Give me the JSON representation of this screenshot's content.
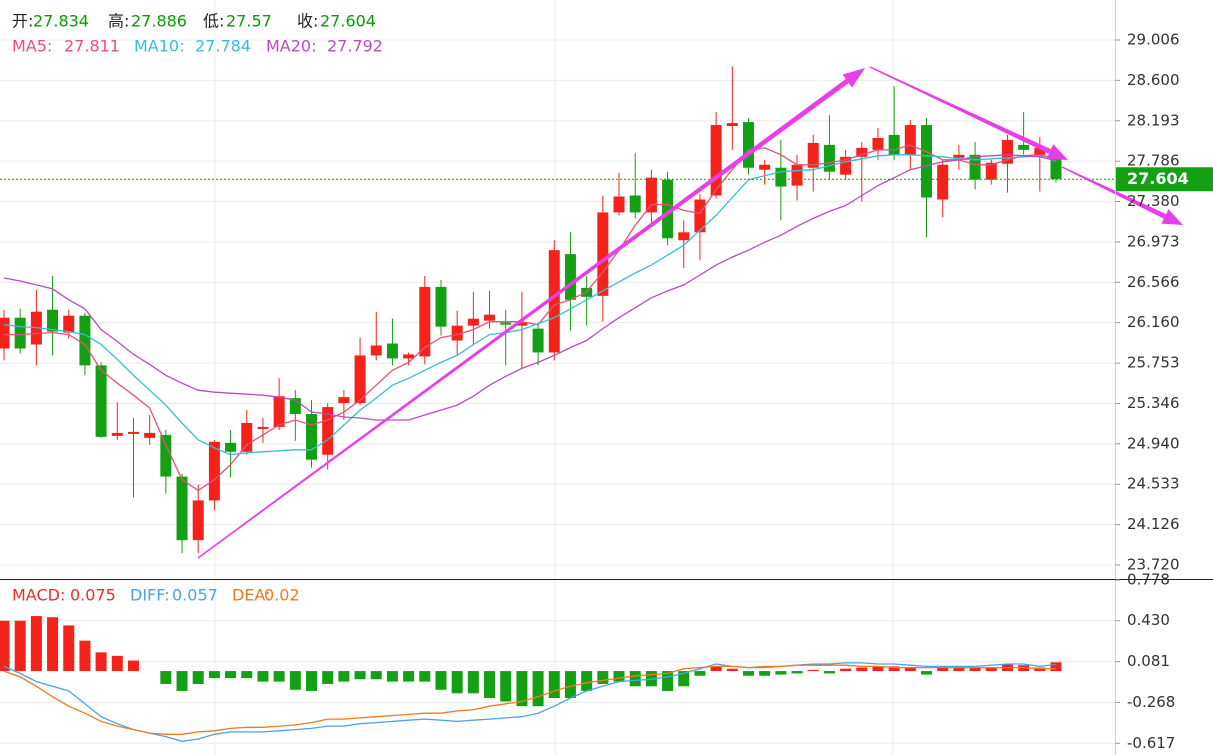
{
  "header": {
    "labels": [
      "开:",
      "高:",
      "低:",
      "收:"
    ],
    "label_color": "#222222",
    "value_color": "#0a9a0a"
  },
  "chart_data": [
    {
      "type": "candlestick",
      "up_color": "#f5221b",
      "down_color": "#14a014",
      "open": [
        25.9,
        26.21,
        25.94,
        26.29,
        26.06,
        26.23,
        25.73,
        25.02,
        25.04,
        25.0,
        25.03,
        24.61,
        23.97,
        24.37,
        24.95,
        24.86,
        25.09,
        25.11,
        25.4,
        25.24,
        24.83,
        25.35,
        25.35,
        25.83,
        25.95,
        25.8,
        25.82,
        26.52,
        25.98,
        26.13,
        26.18,
        26.16,
        26.13,
        26.1,
        25.86,
        26.85,
        26.51,
        26.43,
        27.27,
        27.44,
        27.27,
        27.6,
        26.99,
        27.07,
        27.44,
        28.14,
        28.18,
        27.7,
        27.72,
        27.54,
        27.72,
        27.95,
        27.65,
        27.83,
        27.9,
        28.05,
        27.85,
        28.15,
        27.4,
        27.82,
        27.85,
        27.6,
        27.76,
        27.95,
        27.85,
        27.834
      ],
      "high": [
        26.29,
        26.3,
        26.49,
        26.63,
        26.29,
        26.26,
        25.76,
        25.36,
        25.2,
        25.23,
        25.08,
        24.64,
        24.53,
        24.98,
        25.08,
        25.28,
        25.2,
        25.6,
        25.48,
        25.38,
        25.35,
        25.48,
        26.01,
        26.27,
        26.2,
        25.86,
        26.63,
        26.59,
        26.28,
        26.47,
        26.48,
        26.29,
        26.47,
        26.16,
        26.99,
        27.07,
        26.63,
        27.44,
        27.67,
        27.87,
        27.7,
        27.68,
        27.19,
        27.45,
        28.28,
        28.74,
        28.22,
        27.8,
        28.0,
        27.85,
        28.05,
        28.25,
        27.9,
        27.98,
        28.12,
        28.54,
        28.2,
        28.22,
        27.8,
        27.95,
        27.98,
        27.8,
        28.05,
        28.28,
        28.03,
        27.886
      ],
      "low": [
        25.78,
        25.85,
        25.73,
        25.83,
        26.0,
        25.63,
        25.0,
        24.98,
        24.4,
        24.93,
        24.44,
        23.84,
        23.84,
        24.27,
        24.6,
        24.83,
        24.95,
        25.08,
        24.97,
        24.7,
        24.68,
        25.18,
        25.33,
        25.78,
        25.73,
        25.73,
        25.74,
        26.03,
        25.83,
        25.93,
        26.1,
        25.73,
        25.7,
        25.73,
        25.78,
        26.08,
        26.13,
        26.17,
        27.24,
        27.21,
        27.14,
        26.94,
        26.71,
        26.79,
        27.41,
        27.9,
        27.65,
        27.55,
        27.19,
        27.39,
        27.48,
        27.6,
        27.6,
        27.38,
        27.8,
        27.8,
        27.7,
        27.02,
        27.22,
        27.7,
        27.5,
        27.55,
        27.47,
        27.85,
        27.48,
        27.57
      ],
      "close": [
        26.21,
        25.9,
        26.27,
        26.07,
        26.23,
        25.73,
        25.01,
        25.05,
        25.06,
        25.05,
        24.61,
        23.97,
        24.37,
        24.96,
        24.86,
        25.15,
        25.11,
        25.42,
        25.24,
        24.78,
        25.31,
        25.41,
        25.83,
        25.93,
        25.8,
        25.84,
        26.52,
        26.12,
        26.13,
        26.2,
        26.24,
        26.14,
        26.16,
        25.86,
        26.89,
        26.39,
        26.42,
        27.27,
        27.43,
        27.27,
        27.62,
        27.01,
        27.07,
        27.4,
        28.15,
        28.17,
        27.72,
        27.75,
        27.53,
        27.75,
        27.97,
        27.68,
        27.83,
        27.92,
        28.02,
        27.85,
        28.15,
        27.42,
        27.75,
        27.85,
        27.6,
        27.77,
        28.0,
        27.9,
        27.92,
        27.604
      ],
      "series": [
        {
          "name": "MA5:",
          "color": "#e8507a",
          "values": [
            26.04,
            26.04,
            26.05,
            26.06,
            26.04,
            25.94,
            25.68,
            25.55,
            25.43,
            25.3,
            24.93,
            24.58,
            24.47,
            24.58,
            24.73,
            24.93,
            25.03,
            25.13,
            25.18,
            25.13,
            25.18,
            25.26,
            25.38,
            25.53,
            25.68,
            25.76,
            25.91,
            26.01,
            26.04,
            26.09,
            26.17,
            26.17,
            26.17,
            26.14,
            26.34,
            26.39,
            26.47,
            26.67,
            26.89,
            27.14,
            27.35,
            27.35,
            27.29,
            27.26,
            27.5,
            27.7,
            27.9,
            27.92,
            27.85,
            27.75,
            27.75,
            27.77,
            27.8,
            27.85,
            27.9,
            27.9,
            27.95,
            27.88,
            27.8,
            27.8,
            27.75,
            27.75,
            27.8,
            27.84,
            27.85,
            27.811
          ]
        },
        {
          "name": "MA10:",
          "color": "#36bfd4",
          "values": [
            26.14,
            26.12,
            26.11,
            26.09,
            26.07,
            26.04,
            25.94,
            25.79,
            25.63,
            25.48,
            25.33,
            25.15,
            24.98,
            24.9,
            24.83,
            24.85,
            24.86,
            24.87,
            24.88,
            24.88,
            24.98,
            25.13,
            25.28,
            25.4,
            25.53,
            25.6,
            25.68,
            25.76,
            25.83,
            25.94,
            26.04,
            26.06,
            26.09,
            26.15,
            26.21,
            26.3,
            26.39,
            26.48,
            26.57,
            26.66,
            26.74,
            26.84,
            26.94,
            27.09,
            27.24,
            27.42,
            27.6,
            27.64,
            27.68,
            27.69,
            27.7,
            27.74,
            27.78,
            27.81,
            27.84,
            27.85,
            27.85,
            27.84,
            27.83,
            27.81,
            27.8,
            27.81,
            27.82,
            27.83,
            27.84,
            27.784
          ]
        },
        {
          "name": "MA20:",
          "color": "#b44fc2",
          "values": [
            26.61,
            26.58,
            26.54,
            26.5,
            26.39,
            26.3,
            26.09,
            25.97,
            25.84,
            25.74,
            25.63,
            25.55,
            25.48,
            25.46,
            25.45,
            25.44,
            25.43,
            25.41,
            25.38,
            25.26,
            25.24,
            25.21,
            25.2,
            25.18,
            25.18,
            25.18,
            25.23,
            25.28,
            25.33,
            25.42,
            25.53,
            25.62,
            25.7,
            25.76,
            25.83,
            25.91,
            25.98,
            26.1,
            26.21,
            26.31,
            26.41,
            26.48,
            26.54,
            26.64,
            26.74,
            26.82,
            26.89,
            26.97,
            27.04,
            27.13,
            27.21,
            27.28,
            27.34,
            27.44,
            27.54,
            27.62,
            27.7,
            27.74,
            27.78,
            27.8,
            27.83,
            27.84,
            27.85,
            27.84,
            27.83,
            27.792
          ]
        }
      ],
      "ylim": [
        23.589,
        29.409
      ],
      "yticks": [
        29.006,
        {
          "value": 28.6,
          "label": "28.600"
        },
        28.193,
        27.786,
        {
          "value": 27.38,
          "label": "27.380"
        },
        26.973,
        26.566,
        {
          "value": 26.16,
          "label": "26.160"
        },
        25.753,
        25.346,
        {
          "value": 24.94,
          "label": "24.940"
        },
        24.533,
        24.126,
        {
          "value": 23.72,
          "label": "23.720"
        }
      ],
      "grid": true,
      "last_price_color": "#13a013"
    },
    {
      "type": "macd",
      "up_color": "#f5221b",
      "down_color": "#14a014",
      "series": [
        {
          "name": "MACD:",
          "color": "#e8302a",
          "kind": "histogram",
          "values": [
            0.43,
            0.43,
            0.47,
            0.46,
            0.39,
            0.26,
            0.16,
            0.13,
            0.09,
            0,
            -0.11,
            -0.17,
            -0.11,
            -0.06,
            -0.06,
            -0.06,
            -0.09,
            -0.09,
            -0.16,
            -0.17,
            -0.11,
            -0.09,
            -0.07,
            -0.07,
            -0.09,
            -0.09,
            -0.09,
            -0.16,
            -0.19,
            -0.19,
            -0.23,
            -0.26,
            -0.3,
            -0.3,
            -0.23,
            -0.23,
            -0.17,
            -0.11,
            -0.09,
            -0.13,
            -0.13,
            -0.17,
            -0.13,
            -0.04,
            0.04,
            0.02,
            -0.04,
            -0.04,
            -0.03,
            -0.02,
            0.01,
            -0.02,
            0.02,
            0.03,
            0.04,
            0.04,
            0.03,
            -0.03,
            0.03,
            0.03,
            0.03,
            0.03,
            0.06,
            0.05,
            0.03,
            0.075
          ]
        },
        {
          "name": "DIFF:",
          "color": "#4aa3e8",
          "kind": "line",
          "values": [
            0.04,
            -0.02,
            -0.09,
            -0.13,
            -0.17,
            -0.28,
            -0.39,
            -0.45,
            -0.5,
            -0.53,
            -0.56,
            -0.6,
            -0.58,
            -0.54,
            -0.52,
            -0.52,
            -0.52,
            -0.51,
            -0.5,
            -0.49,
            -0.47,
            -0.47,
            -0.45,
            -0.44,
            -0.43,
            -0.42,
            -0.41,
            -0.42,
            -0.43,
            -0.42,
            -0.41,
            -0.4,
            -0.39,
            -0.36,
            -0.3,
            -0.23,
            -0.17,
            -0.13,
            -0.09,
            -0.08,
            -0.07,
            -0.05,
            -0.02,
            0.02,
            0.06,
            0.04,
            0.03,
            0.03,
            0.04,
            0.05,
            0.06,
            0.06,
            0.07,
            0.07,
            0.06,
            0.06,
            0.05,
            0.04,
            0.04,
            0.04,
            0.04,
            0.05,
            0.06,
            0.06,
            0.04,
            0.057
          ]
        },
        {
          "name": "DEA:",
          "color": "#f07a1f",
          "kind": "line",
          "values": [
            0.0,
            -0.05,
            -0.13,
            -0.22,
            -0.3,
            -0.36,
            -0.43,
            -0.47,
            -0.5,
            -0.53,
            -0.54,
            -0.54,
            -0.52,
            -0.51,
            -0.49,
            -0.48,
            -0.48,
            -0.47,
            -0.46,
            -0.44,
            -0.41,
            -0.41,
            -0.4,
            -0.39,
            -0.38,
            -0.37,
            -0.36,
            -0.36,
            -0.34,
            -0.33,
            -0.3,
            -0.28,
            -0.26,
            -0.22,
            -0.17,
            -0.13,
            -0.1,
            -0.08,
            -0.06,
            -0.04,
            -0.03,
            -0.02,
            0.02,
            0.03,
            0.04,
            0.04,
            0.03,
            0.04,
            0.04,
            0.05,
            0.05,
            0.05,
            0.05,
            0.04,
            0.04,
            0.03,
            0.03,
            0.03,
            0.03,
            0.03,
            0.03,
            0.03,
            0.03,
            0.03,
            0.02,
            0.02
          ]
        }
      ],
      "ylim": [
        -0.717,
        0.778
      ],
      "yticks": [
        0.778,
        {
          "value": 0.43,
          "label": "0.430"
        },
        0.081,
        -0.268,
        -0.617
      ],
      "grid": true
    }
  ]
}
